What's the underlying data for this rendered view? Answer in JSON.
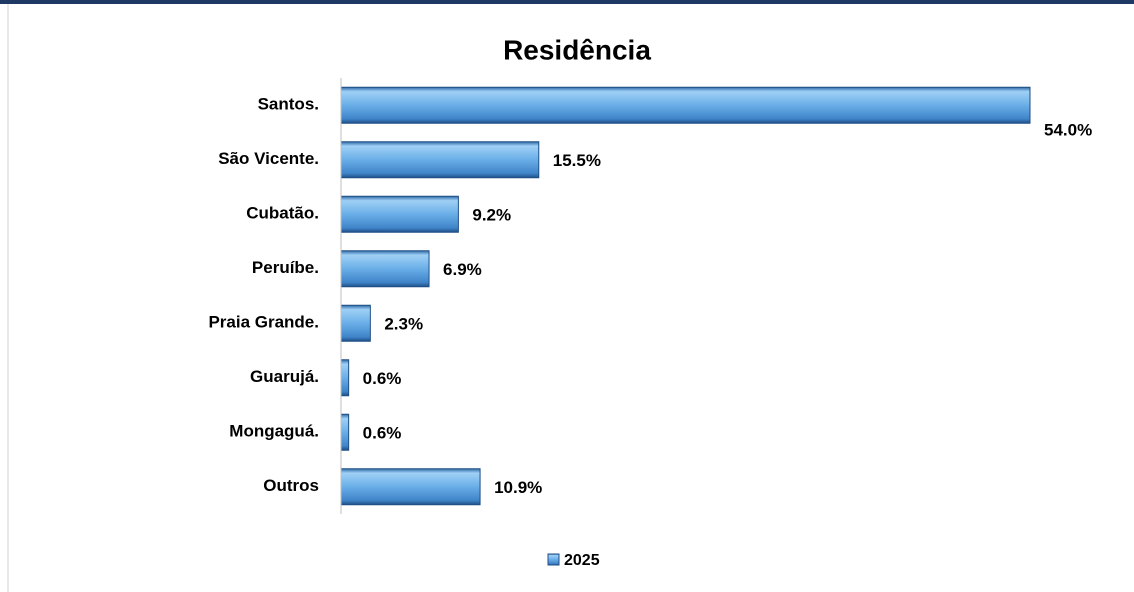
{
  "chart_data": {
    "type": "hbar",
    "title": "Residência",
    "categories": [
      "Santos.",
      "São Vicente.",
      "Cubatão.",
      "Peruíbe.",
      "Praia Grande.",
      "Guarujá.",
      "Mongaguá.",
      "Outros"
    ],
    "series": [
      {
        "name": "2025",
        "color": "#5b9bd5",
        "values": [
          54.0,
          15.5,
          9.2,
          6.9,
          2.3,
          0.6,
          0.6,
          10.9
        ],
        "value_labels": [
          "54.0%",
          "15.5%",
          "9.2%",
          "6.9%",
          "2.3%",
          "0.6%",
          "0.6%",
          "10.9%"
        ]
      }
    ],
    "xlim": [
      0,
      54
    ],
    "legend": "bottom"
  }
}
